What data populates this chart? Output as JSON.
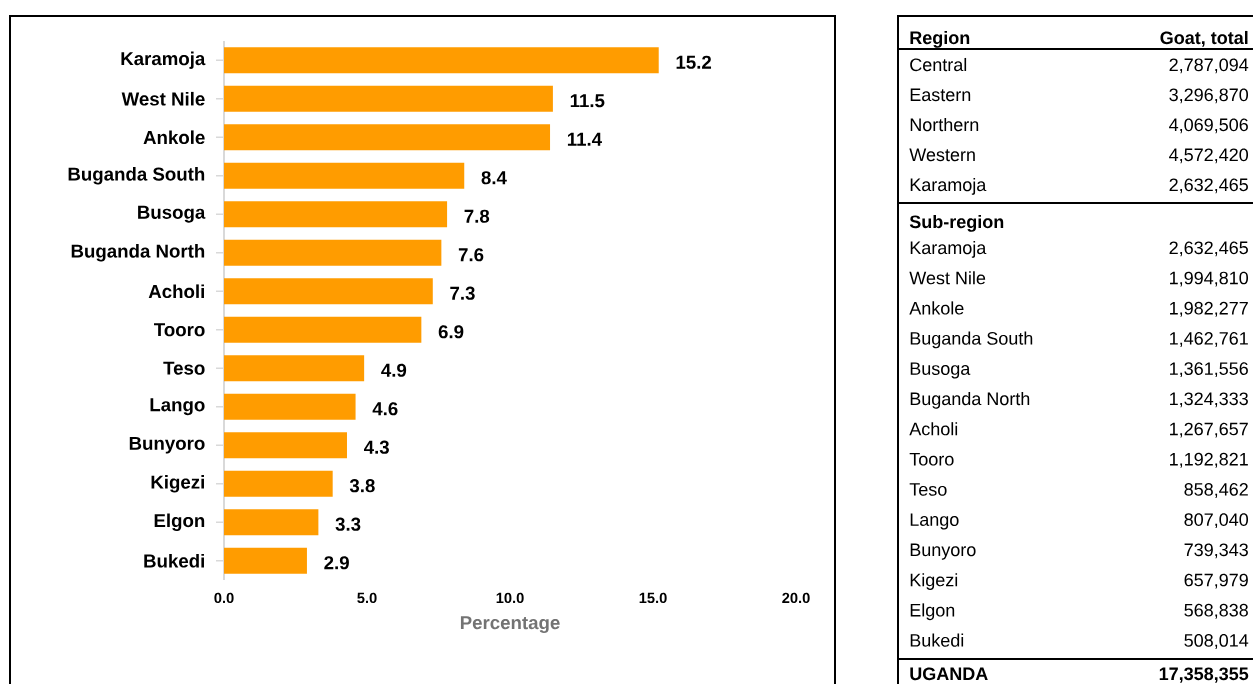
{
  "chart_data": [
    {
      "type": "bar",
      "orientation": "horizontal",
      "xlabel": "Percentage",
      "categories": [
        "Karamoja",
        "West Nile",
        "Ankole",
        "Buganda South",
        "Busoga",
        "Buganda North",
        "Acholi",
        "Tooro",
        "Teso",
        "Lango",
        "Bunyoro",
        "Kigezi",
        "Elgon",
        "Bukedi"
      ],
      "values": [
        15.2,
        11.5,
        11.4,
        8.4,
        7.8,
        7.6,
        7.3,
        6.9,
        4.9,
        4.6,
        4.3,
        3.8,
        3.3,
        2.9
      ],
      "color": "#ff9c00",
      "data_labels": true,
      "xlim": [
        0,
        20
      ],
      "xticks": [
        {
          "value": 0,
          "label": "0.0"
        },
        {
          "value": 5,
          "label": "5.0"
        },
        {
          "value": 10,
          "label": "10.0"
        },
        {
          "value": 15,
          "label": "15.0"
        },
        {
          "value": 20,
          "label": "20.0"
        }
      ]
    },
    {
      "type": "other",
      "annotations": [
        "Region",
        "Goat, total",
        "Central",
        "2,787,094",
        "Eastern",
        "3,296,870",
        "Northern",
        "4,069,506",
        "Western",
        "4,572,420",
        "Karamoja",
        "2,632,465",
        "Sub-region",
        "Karamoja",
        "2,632,465",
        "West Nile",
        "1,994,810",
        "Ankole",
        "1,982,277",
        "Buganda South",
        "1,462,761",
        "Busoga",
        "1,361,556",
        "Buganda North",
        "1,324,333",
        "Acholi",
        "1,267,657",
        "Tooro",
        "1,192,821",
        "Teso",
        "858,462",
        "Lango",
        "807,040",
        "Bunyoro",
        "739,343",
        "Kigezi",
        "657,979",
        "Elgon",
        "568,838",
        "Bukedi",
        "508,014",
        "UGANDA",
        "17,358,355"
      ]
    }
  ]
}
